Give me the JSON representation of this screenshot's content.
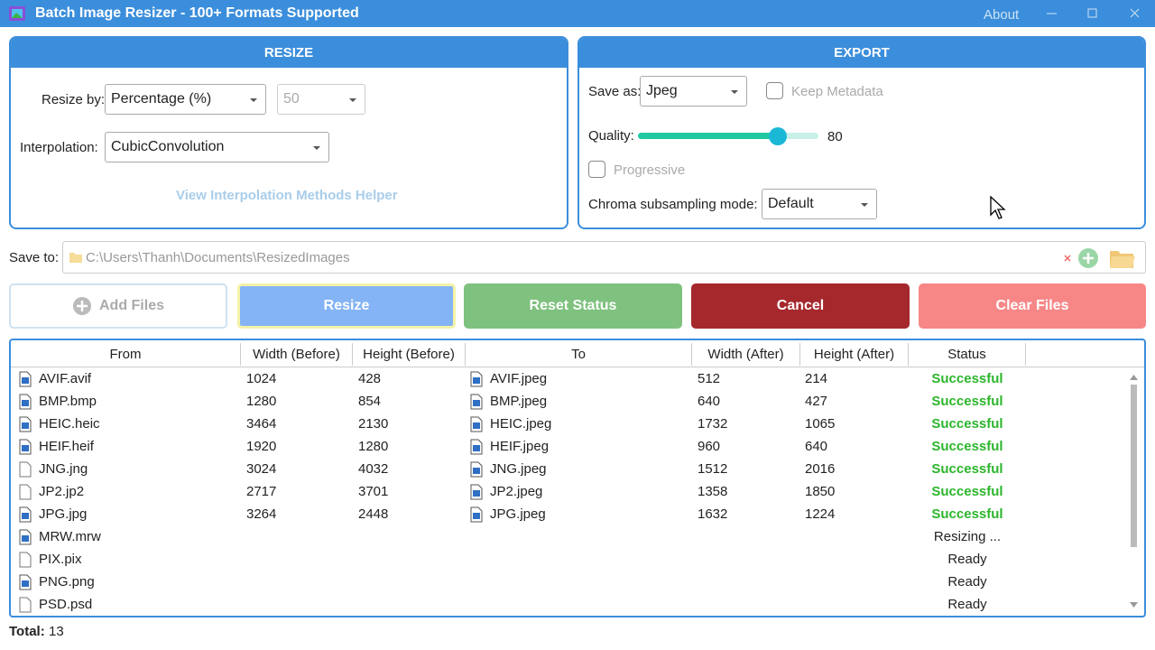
{
  "window": {
    "title": "Batch Image Resizer - 100+ Formats Supported",
    "about": "About"
  },
  "resize": {
    "header": "RESIZE",
    "resize_by_label": "Resize by:",
    "resize_by": "Percentage (%)",
    "amount": "50",
    "interpolation_label": "Interpolation:",
    "interpolation": "CubicConvolution",
    "helper_link": "View Interpolation Methods Helper"
  },
  "export": {
    "header": "EXPORT",
    "save_as_label": "Save as:",
    "save_as": "Jpeg",
    "keep_metadata": "Keep Metadata",
    "quality_label": "Quality:",
    "quality": 80,
    "progressive": "Progressive",
    "chroma_label": "Chroma subsampling mode:",
    "chroma": "Default"
  },
  "save_to": {
    "label": "Save to:",
    "path": "C:\\Users\\Thanh\\Documents\\ResizedImages"
  },
  "buttons": [
    "Add Files",
    "Resize",
    "Reset Status",
    "Cancel",
    "Clear Files"
  ],
  "table": {
    "columns": [
      "From",
      "Width (Before)",
      "Height (Before)",
      "To",
      "Width (After)",
      "Height (After)",
      "Status"
    ],
    "rows": [
      {
        "icon": "image",
        "from": "AVIF.avif",
        "width_before": 1024,
        "height_before": 428,
        "to": "AVIF.jpeg",
        "width_after": 512,
        "height_after": 214,
        "status": "Successful"
      },
      {
        "icon": "image",
        "from": "BMP.bmp",
        "width_before": 1280,
        "height_before": 854,
        "to": "BMP.jpeg",
        "width_after": 640,
        "height_after": 427,
        "status": "Successful"
      },
      {
        "icon": "image",
        "from": "HEIC.heic",
        "width_before": 3464,
        "height_before": 2130,
        "to": "HEIC.jpeg",
        "width_after": 1732,
        "height_after": 1065,
        "status": "Successful"
      },
      {
        "icon": "image",
        "from": "HEIF.heif",
        "width_before": 1920,
        "height_before": 1280,
        "to": "HEIF.jpeg",
        "width_after": 960,
        "height_after": 640,
        "status": "Successful"
      },
      {
        "icon": "file",
        "from": "JNG.jng",
        "width_before": 3024,
        "height_before": 4032,
        "to": "JNG.jpeg",
        "width_after": 1512,
        "height_after": 2016,
        "status": "Successful"
      },
      {
        "icon": "file",
        "from": "JP2.jp2",
        "width_before": 2717,
        "height_before": 3701,
        "to": "JP2.jpeg",
        "width_after": 1358,
        "height_after": 1850,
        "status": "Successful"
      },
      {
        "icon": "image",
        "from": "JPG.jpg",
        "width_before": 3264,
        "height_before": 2448,
        "to": "JPG.jpeg",
        "width_after": 1632,
        "height_after": 1224,
        "status": "Successful"
      },
      {
        "icon": "image",
        "from": "MRW.mrw",
        "status": "Resizing ..."
      },
      {
        "icon": "file",
        "from": "PIX.pix",
        "status": "Ready"
      },
      {
        "icon": "image",
        "from": "PNG.png",
        "status": "Ready"
      },
      {
        "icon": "file",
        "from": "PSD.psd",
        "status": "Ready"
      }
    ]
  },
  "total": {
    "label": "Total:",
    "value": 13
  }
}
